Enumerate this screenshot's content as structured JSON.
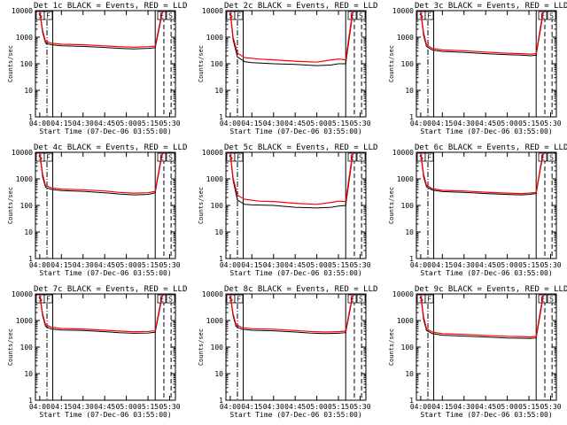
{
  "chart_data": {
    "type": "line",
    "x_unit": "time of day (hh:mm), 07-Dec-06",
    "xlim": [
      "03:57",
      "05:34"
    ],
    "ylim": [
      1,
      10000
    ],
    "y_scale": "log",
    "grid": false,
    "x_ticks": [
      "04:00",
      "04:15",
      "04:30",
      "04:45",
      "05:00",
      "05:15",
      "05:30"
    ],
    "y_ticks": [
      "1",
      "10",
      "100",
      "1000",
      "10000"
    ],
    "xlabel": "Start Time (07-Dec-06 03:55:00)",
    "ylabel": "Counts/sec",
    "series_colors": {
      "events": "#000000",
      "lld": "#ff0000"
    },
    "edge_box_labels": [
      "S",
      "F",
      "E",
      "S"
    ],
    "vertical_markers": [
      {
        "t": "04:05",
        "style": "dashdot"
      },
      {
        "t": "04:09",
        "style": "solid"
      },
      {
        "t": "05:20",
        "style": "solid"
      },
      {
        "t": "05:26",
        "style": "dashed"
      },
      {
        "t": "05:31",
        "style": "dashed"
      }
    ],
    "panels": [
      {
        "title": "Det 1c BLACK = Events, RED = LLD",
        "events": [
          [
            "04:00",
            9000
          ],
          [
            "04:02",
            1500
          ],
          [
            "04:04",
            600
          ],
          [
            "04:08",
            520
          ],
          [
            "04:15",
            470
          ],
          [
            "04:30",
            450
          ],
          [
            "04:45",
            410
          ],
          [
            "04:55",
            380
          ],
          [
            "05:05",
            360
          ],
          [
            "05:15",
            380
          ],
          [
            "05:20",
            400
          ],
          [
            "05:23",
            2500
          ],
          [
            "05:25",
            9000
          ]
        ],
        "lld": [
          [
            "04:00",
            9500
          ],
          [
            "04:02",
            1800
          ],
          [
            "04:04",
            700
          ],
          [
            "04:08",
            600
          ],
          [
            "04:15",
            540
          ],
          [
            "04:30",
            520
          ],
          [
            "04:45",
            470
          ],
          [
            "04:55",
            440
          ],
          [
            "05:05",
            420
          ],
          [
            "05:15",
            440
          ],
          [
            "05:20",
            460
          ],
          [
            "05:23",
            3000
          ],
          [
            "05:25",
            9500
          ]
        ]
      },
      {
        "title": "Det 2c BLACK = Events, RED = LLD",
        "events": [
          [
            "04:00",
            9000
          ],
          [
            "04:02",
            800
          ],
          [
            "04:05",
            180
          ],
          [
            "04:10",
            120
          ],
          [
            "04:15",
            110
          ],
          [
            "04:30",
            100
          ],
          [
            "04:45",
            95
          ],
          [
            "05:00",
            85
          ],
          [
            "05:10",
            90
          ],
          [
            "05:15",
            100
          ],
          [
            "05:20",
            100
          ],
          [
            "05:23",
            1500
          ],
          [
            "05:25",
            9000
          ]
        ],
        "lld": [
          [
            "04:00",
            9500
          ],
          [
            "04:02",
            1000
          ],
          [
            "04:05",
            250
          ],
          [
            "04:10",
            170
          ],
          [
            "04:20",
            150
          ],
          [
            "04:30",
            140
          ],
          [
            "04:45",
            125
          ],
          [
            "05:00",
            115
          ],
          [
            "05:10",
            140
          ],
          [
            "05:15",
            150
          ],
          [
            "05:20",
            140
          ],
          [
            "05:23",
            2000
          ],
          [
            "05:25",
            9500
          ]
        ]
      },
      {
        "title": "Det 3c BLACK = Events, RED = LLD",
        "events": [
          [
            "04:00",
            9000
          ],
          [
            "04:02",
            1200
          ],
          [
            "04:04",
            450
          ],
          [
            "04:08",
            330
          ],
          [
            "04:15",
            290
          ],
          [
            "04:30",
            270
          ],
          [
            "04:45",
            240
          ],
          [
            "05:00",
            220
          ],
          [
            "05:10",
            210
          ],
          [
            "05:16",
            200
          ],
          [
            "05:20",
            210
          ],
          [
            "05:23",
            2000
          ],
          [
            "05:25",
            9000
          ]
        ],
        "lld": [
          [
            "04:00",
            9500
          ],
          [
            "04:02",
            1500
          ],
          [
            "04:04",
            520
          ],
          [
            "04:08",
            380
          ],
          [
            "04:15",
            330
          ],
          [
            "04:30",
            310
          ],
          [
            "04:45",
            275
          ],
          [
            "05:00",
            250
          ],
          [
            "05:10",
            240
          ],
          [
            "05:16",
            230
          ],
          [
            "05:20",
            240
          ],
          [
            "05:23",
            2500
          ],
          [
            "05:25",
            9500
          ]
        ]
      },
      {
        "title": "Det 4c BLACK = Events, RED = LLD",
        "events": [
          [
            "04:00",
            9000
          ],
          [
            "04:02",
            1200
          ],
          [
            "04:04",
            480
          ],
          [
            "04:08",
            400
          ],
          [
            "04:15",
            360
          ],
          [
            "04:30",
            340
          ],
          [
            "04:45",
            300
          ],
          [
            "04:55",
            270
          ],
          [
            "05:05",
            250
          ],
          [
            "05:15",
            260
          ],
          [
            "05:20",
            300
          ],
          [
            "05:23",
            2500
          ],
          [
            "05:25",
            9000
          ]
        ],
        "lld": [
          [
            "04:00",
            9500
          ],
          [
            "04:02",
            1500
          ],
          [
            "04:04",
            560
          ],
          [
            "04:08",
            460
          ],
          [
            "04:15",
            410
          ],
          [
            "04:30",
            390
          ],
          [
            "04:45",
            350
          ],
          [
            "04:55",
            310
          ],
          [
            "05:05",
            290
          ],
          [
            "05:15",
            300
          ],
          [
            "05:20",
            340
          ],
          [
            "05:23",
            3000
          ],
          [
            "05:25",
            9500
          ]
        ]
      },
      {
        "title": "Det 5c BLACK = Events, RED = LLD",
        "events": [
          [
            "04:00",
            9000
          ],
          [
            "04:02",
            900
          ],
          [
            "04:05",
            160
          ],
          [
            "04:10",
            110
          ],
          [
            "04:15",
            105
          ],
          [
            "04:30",
            100
          ],
          [
            "04:45",
            85
          ],
          [
            "05:00",
            80
          ],
          [
            "05:10",
            85
          ],
          [
            "05:15",
            95
          ],
          [
            "05:20",
            100
          ],
          [
            "05:23",
            1500
          ],
          [
            "05:25",
            9000
          ]
        ],
        "lld": [
          [
            "04:00",
            9500
          ],
          [
            "04:02",
            1100
          ],
          [
            "04:05",
            240
          ],
          [
            "04:10",
            170
          ],
          [
            "04:20",
            145
          ],
          [
            "04:30",
            140
          ],
          [
            "04:45",
            120
          ],
          [
            "05:00",
            110
          ],
          [
            "05:10",
            130
          ],
          [
            "05:15",
            145
          ],
          [
            "05:20",
            140
          ],
          [
            "05:23",
            2000
          ],
          [
            "05:25",
            9500
          ]
        ]
      },
      {
        "title": "Det 6c BLACK = Events, RED = LLD",
        "events": [
          [
            "04:00",
            9000
          ],
          [
            "04:02",
            1200
          ],
          [
            "04:04",
            500
          ],
          [
            "04:08",
            380
          ],
          [
            "04:15",
            330
          ],
          [
            "04:30",
            310
          ],
          [
            "04:45",
            280
          ],
          [
            "05:00",
            260
          ],
          [
            "05:10",
            250
          ],
          [
            "05:15",
            260
          ],
          [
            "05:20",
            280
          ],
          [
            "05:23",
            2500
          ],
          [
            "05:25",
            9000
          ]
        ],
        "lld": [
          [
            "04:00",
            9500
          ],
          [
            "04:02",
            1500
          ],
          [
            "04:04",
            570
          ],
          [
            "04:08",
            430
          ],
          [
            "04:15",
            370
          ],
          [
            "04:30",
            350
          ],
          [
            "04:45",
            315
          ],
          [
            "05:00",
            290
          ],
          [
            "05:10",
            280
          ],
          [
            "05:15",
            290
          ],
          [
            "05:20",
            310
          ],
          [
            "05:23",
            3000
          ],
          [
            "05:25",
            9500
          ]
        ]
      },
      {
        "title": "Det 7c BLACK = Events, RED = LLD",
        "events": [
          [
            "04:00",
            9000
          ],
          [
            "04:02",
            1500
          ],
          [
            "04:04",
            600
          ],
          [
            "04:08",
            480
          ],
          [
            "04:15",
            440
          ],
          [
            "04:30",
            420
          ],
          [
            "04:45",
            380
          ],
          [
            "04:55",
            350
          ],
          [
            "05:05",
            330
          ],
          [
            "05:15",
            340
          ],
          [
            "05:20",
            360
          ],
          [
            "05:23",
            2500
          ],
          [
            "05:25",
            9000
          ]
        ],
        "lld": [
          [
            "04:00",
            9500
          ],
          [
            "04:02",
            1800
          ],
          [
            "04:04",
            700
          ],
          [
            "04:08",
            560
          ],
          [
            "04:15",
            500
          ],
          [
            "04:30",
            480
          ],
          [
            "04:45",
            430
          ],
          [
            "04:55",
            400
          ],
          [
            "05:05",
            380
          ],
          [
            "05:15",
            390
          ],
          [
            "05:20",
            410
          ],
          [
            "05:23",
            3000
          ],
          [
            "05:25",
            9500
          ]
        ]
      },
      {
        "title": "Det 8c BLACK = Events, RED = LLD",
        "events": [
          [
            "04:00",
            9000
          ],
          [
            "04:02",
            1500
          ],
          [
            "04:04",
            600
          ],
          [
            "04:08",
            470
          ],
          [
            "04:15",
            430
          ],
          [
            "04:30",
            410
          ],
          [
            "04:45",
            370
          ],
          [
            "04:55",
            340
          ],
          [
            "05:05",
            320
          ],
          [
            "05:15",
            330
          ],
          [
            "05:20",
            350
          ],
          [
            "05:23",
            2500
          ],
          [
            "05:25",
            9000
          ]
        ],
        "lld": [
          [
            "04:00",
            9500
          ],
          [
            "04:02",
            1800
          ],
          [
            "04:04",
            700
          ],
          [
            "04:08",
            550
          ],
          [
            "04:15",
            490
          ],
          [
            "04:30",
            470
          ],
          [
            "04:45",
            420
          ],
          [
            "04:55",
            390
          ],
          [
            "05:05",
            370
          ],
          [
            "05:15",
            380
          ],
          [
            "05:20",
            400
          ],
          [
            "05:23",
            3000
          ],
          [
            "05:25",
            9500
          ]
        ]
      },
      {
        "title": "Det 9c BLACK = Events, RED = LLD",
        "events": [
          [
            "04:00",
            9000
          ],
          [
            "04:02",
            1100
          ],
          [
            "04:04",
            420
          ],
          [
            "04:08",
            320
          ],
          [
            "04:15",
            280
          ],
          [
            "04:30",
            260
          ],
          [
            "04:45",
            240
          ],
          [
            "05:00",
            220
          ],
          [
            "05:10",
            215
          ],
          [
            "05:16",
            210
          ],
          [
            "05:20",
            220
          ],
          [
            "05:23",
            2000
          ],
          [
            "05:25",
            9000
          ]
        ],
        "lld": [
          [
            "04:00",
            9500
          ],
          [
            "04:02",
            1400
          ],
          [
            "04:04",
            490
          ],
          [
            "04:08",
            370
          ],
          [
            "04:15",
            320
          ],
          [
            "04:30",
            300
          ],
          [
            "04:45",
            275
          ],
          [
            "05:00",
            255
          ],
          [
            "05:10",
            250
          ],
          [
            "05:16",
            240
          ],
          [
            "05:20",
            255
          ],
          [
            "05:23",
            2500
          ],
          [
            "05:25",
            9500
          ]
        ]
      }
    ]
  }
}
